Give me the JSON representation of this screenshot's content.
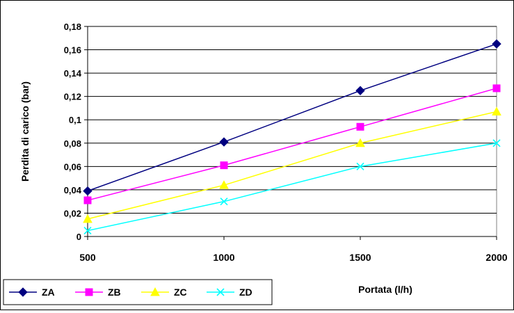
{
  "chart_data": {
    "type": "line",
    "title": "",
    "xlabel": "Portata (l/h)",
    "ylabel": "Perdita di carico (bar)",
    "x": [
      500,
      1000,
      1500,
      2000
    ],
    "x_tick_labels": [
      "500",
      "1000",
      "1500",
      "2000"
    ],
    "ylim": [
      0,
      0.18
    ],
    "y_tick_labels": [
      "0",
      "0,02",
      "0,04",
      "0,06",
      "0,08",
      "0,1",
      "0,12",
      "0,14",
      "0,16",
      "0,18"
    ],
    "grid": "horizontal",
    "legend_position": "bottom-left",
    "series": [
      {
        "name": "ZA",
        "values": [
          0.039,
          0.081,
          0.125,
          0.165
        ],
        "color": "#000080",
        "marker": "diamond"
      },
      {
        "name": "ZB",
        "values": [
          0.031,
          0.061,
          0.094,
          0.127
        ],
        "color": "#ff00ff",
        "marker": "square"
      },
      {
        "name": "ZC",
        "values": [
          0.015,
          0.044,
          0.08,
          0.107
        ],
        "color": "#ffff00",
        "marker": "triangle"
      },
      {
        "name": "ZD",
        "values": [
          0.005,
          0.03,
          0.06,
          0.08
        ],
        "color": "#00ffff",
        "marker": "x"
      }
    ]
  }
}
